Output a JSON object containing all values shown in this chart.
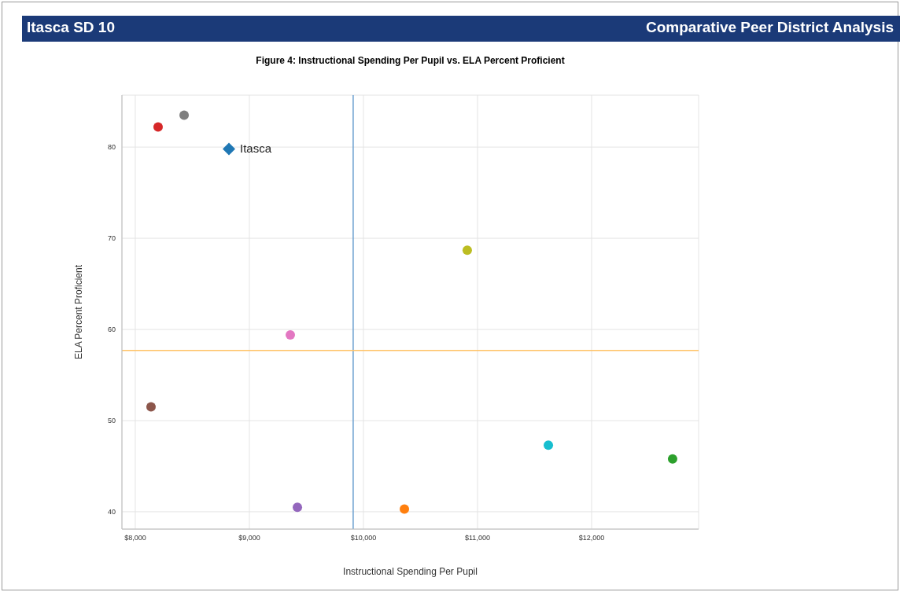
{
  "chart_data": {
    "type": "scatter",
    "title": "Figure 4: Instructional Spending Per Pupil vs. ELA Percent Proficient",
    "xlabel": "Instructional Spending Per Pupil",
    "ylabel": "ELA Percent Proficient",
    "annotations": [
      "Itasca SD 10",
      "Comparative Peer District Analysis"
    ],
    "series": [
      {
        "x": [
          8200,
          8428,
          10910,
          9359,
          8138,
          9421,
          10359,
          11621,
          12710
        ],
        "values": [
          82.2,
          83.5,
          68.7,
          59.4,
          51.5,
          40.5,
          40.3,
          47.3,
          45.8
        ],
        "colors": [
          "#d62728",
          "#7f7f7f",
          "#bcbd22",
          "#e377c2",
          "#8c564b",
          "#9467bd",
          "#ff7f0e",
          "#17becf",
          "#2ca02c"
        ],
        "marker": "circle"
      },
      {
        "name": "Itasca",
        "x": [
          8821
        ],
        "values": [
          79.8
        ],
        "color": "#1f77b4",
        "marker": "diamond"
      }
    ],
    "xlim": [
      7883,
      12938
    ],
    "xticks": [
      {
        "value": 8000,
        "label": "$8,000"
      },
      {
        "value": 9000,
        "label": "$9,000"
      },
      {
        "value": 10000,
        "label": "$10,000"
      },
      {
        "value": 11000,
        "label": "$11,000"
      },
      {
        "value": 12000,
        "label": "$12,000"
      }
    ],
    "ylim": [
      38.1,
      85.7
    ],
    "yticks": [
      40,
      50,
      60,
      70,
      80
    ],
    "ref_lines": [
      {
        "axis": "x",
        "value": 9910,
        "color": "#6a9fcf"
      },
      {
        "axis": "y",
        "value": 57.7,
        "color": "#ffc266"
      }
    ],
    "grid": true
  }
}
